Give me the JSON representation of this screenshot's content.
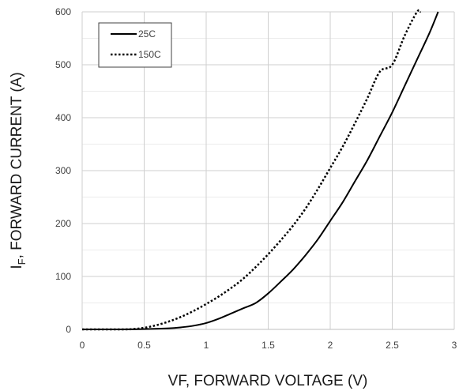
{
  "chart_data": {
    "type": "line",
    "title": "",
    "xlabel": "VF, FORWARD VOLTAGE (V)",
    "ylabel": {
      "prefix": "I",
      "subscript": "F",
      "suffix": ", FORWARD CURRENT (A)"
    },
    "xlim": [
      0,
      3
    ],
    "ylim": [
      0,
      600
    ],
    "xticks": [
      0,
      0.5,
      1,
      1.5,
      2,
      2.5,
      3
    ],
    "xtick_labels": [
      "0",
      "0.5",
      "1",
      "1.5",
      "2",
      "2.5",
      "3"
    ],
    "yticks": [
      0,
      100,
      200,
      300,
      400,
      500,
      600
    ],
    "ytick_labels": [
      "0",
      "100",
      "200",
      "300",
      "400",
      "500",
      "600"
    ],
    "grid": true,
    "legend_position": "top-left",
    "series": [
      {
        "name": "25C",
        "style": "solid",
        "color": "#000000",
        "x": [
          0,
          0.3,
          0.5,
          0.7,
          0.8,
          0.9,
          1.0,
          1.1,
          1.2,
          1.3,
          1.4,
          1.5,
          1.6,
          1.7,
          1.8,
          1.9,
          2.0,
          2.1,
          2.2,
          2.3,
          2.4,
          2.5,
          2.6,
          2.7,
          2.8,
          2.87
        ],
        "y": [
          0,
          0,
          0.5,
          2,
          4,
          7,
          12,
          20,
          30,
          40,
          50,
          68,
          90,
          113,
          140,
          170,
          205,
          240,
          280,
          320,
          365,
          410,
          460,
          510,
          560,
          600
        ]
      },
      {
        "name": "150C",
        "style": "dotted",
        "color": "#000000",
        "x": [
          0,
          0.3,
          0.4,
          0.5,
          0.6,
          0.7,
          0.8,
          0.9,
          1.0,
          1.1,
          1.2,
          1.3,
          1.4,
          1.5,
          1.6,
          1.7,
          1.8,
          1.9,
          2.0,
          2.1,
          2.2,
          2.3,
          2.4,
          2.5,
          2.6,
          2.7,
          2.73
        ],
        "y": [
          0,
          0,
          0.5,
          3,
          8,
          15,
          24,
          35,
          48,
          62,
          78,
          96,
          118,
          142,
          168,
          196,
          228,
          265,
          305,
          345,
          390,
          437,
          487,
          500,
          555,
          600,
          600
        ]
      }
    ]
  }
}
